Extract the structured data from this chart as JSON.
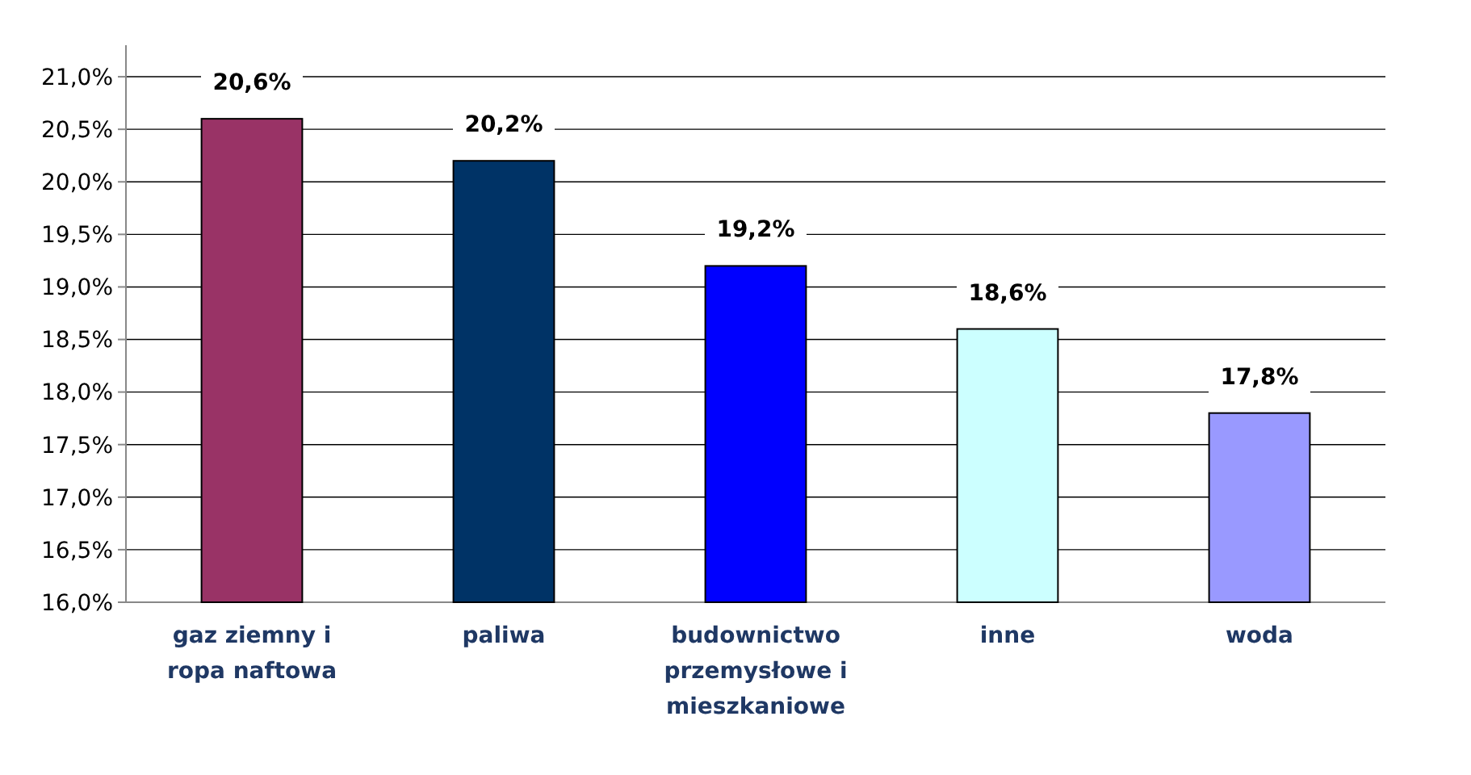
{
  "chart_data": {
    "type": "bar",
    "categories": [
      "gaz ziemny i ropa naftowa",
      "paliwa",
      "budownictwo przemysłowe i mieszkaniowe",
      "inne",
      "woda"
    ],
    "values": [
      20.6,
      20.2,
      19.2,
      18.6,
      17.8
    ],
    "colors": [
      "#993366",
      "#003366",
      "#0000ff",
      "#ccffff",
      "#9999ff"
    ],
    "value_labels": [
      "20,6%",
      "20,2%",
      "19,2%",
      "18,6%",
      "17,8%"
    ],
    "ylim": [
      16,
      21.3
    ],
    "yticks": [
      {
        "value": 16,
        "label": "16,0%"
      },
      {
        "value": 16.5,
        "label": "16,5%"
      },
      {
        "value": 17,
        "label": "17,0%"
      },
      {
        "value": 17.5,
        "label": "17,5%"
      },
      {
        "value": 18,
        "label": "18,0%"
      },
      {
        "value": 18.5,
        "label": "18,5%"
      },
      {
        "value": 19,
        "label": "19,0%"
      },
      {
        "value": 19.5,
        "label": "19,5%"
      },
      {
        "value": 20,
        "label": "20,0%"
      },
      {
        "value": 20.5,
        "label": "20,5%"
      },
      {
        "value": 21,
        "label": "21,0%"
      }
    ],
    "grid": "y"
  }
}
